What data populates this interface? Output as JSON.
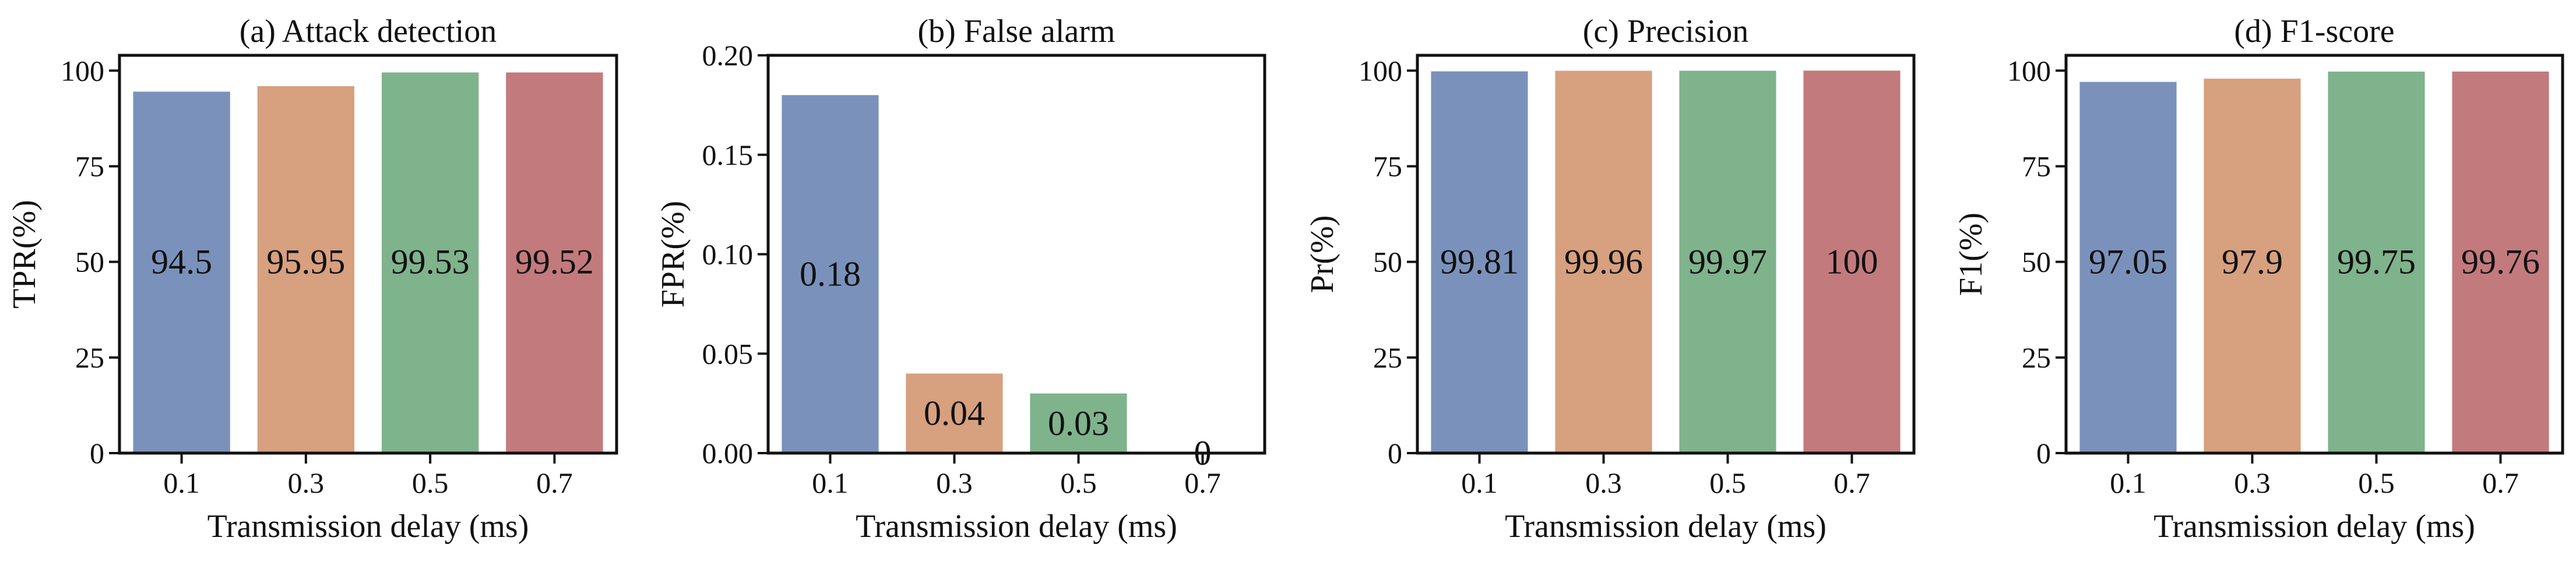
{
  "chart_data": [
    {
      "type": "bar",
      "title": "(a) Attack detection",
      "xlabel": "Transmission delay (ms)",
      "ylabel": "TPR(%)",
      "categories": [
        "0.1",
        "0.3",
        "0.5",
        "0.7"
      ],
      "values": [
        94.5,
        95.95,
        99.53,
        99.52
      ],
      "value_labels": [
        "94.5",
        "95.95",
        "99.53",
        "99.52"
      ],
      "ylim": [
        0,
        104
      ],
      "yticks": [
        0,
        25,
        50,
        75,
        100
      ],
      "ytick_labels": [
        "0",
        "25",
        "50",
        "75",
        "100"
      ],
      "label_value": 50
    },
    {
      "type": "bar",
      "title": "(b) False alarm",
      "xlabel": "Transmission delay (ms)",
      "ylabel": "FPR(%)",
      "categories": [
        "0.1",
        "0.3",
        "0.5",
        "0.7"
      ],
      "values": [
        0.18,
        0.04,
        0.03,
        0
      ],
      "value_labels": [
        "0.18",
        "0.04",
        "0.03",
        "0"
      ],
      "ylim": [
        0,
        0.2
      ],
      "yticks": [
        0,
        0.05,
        0.1,
        0.15,
        0.2
      ],
      "ytick_labels": [
        "0.00",
        "0.05",
        "0.10",
        "0.15",
        "0.20"
      ],
      "label_value": "center"
    },
    {
      "type": "bar",
      "title": "(c) Precision",
      "xlabel": "Transmission delay (ms)",
      "ylabel": "Pr(%)",
      "categories": [
        "0.1",
        "0.3",
        "0.5",
        "0.7"
      ],
      "values": [
        99.81,
        99.96,
        99.97,
        100
      ],
      "value_labels": [
        "99.81",
        "99.96",
        "99.97",
        "100"
      ],
      "ylim": [
        0,
        104
      ],
      "yticks": [
        0,
        25,
        50,
        75,
        100
      ],
      "ytick_labels": [
        "0",
        "25",
        "50",
        "75",
        "100"
      ],
      "label_value": 50
    },
    {
      "type": "bar",
      "title": "(d) F1-score",
      "xlabel": "Transmission delay (ms)",
      "ylabel": "F1(%)",
      "categories": [
        "0.1",
        "0.3",
        "0.5",
        "0.7"
      ],
      "values": [
        97.05,
        97.9,
        99.75,
        99.76
      ],
      "value_labels": [
        "97.05",
        "97.9",
        "99.75",
        "99.76"
      ],
      "ylim": [
        0,
        104
      ],
      "yticks": [
        0,
        25,
        50,
        75,
        100
      ],
      "ytick_labels": [
        "0",
        "25",
        "50",
        "75",
        "100"
      ],
      "label_value": 50
    }
  ],
  "colors": {
    "bars": [
      "#7a92bb",
      "#d7a07f",
      "#7fb38c",
      "#c37a7d"
    ]
  }
}
